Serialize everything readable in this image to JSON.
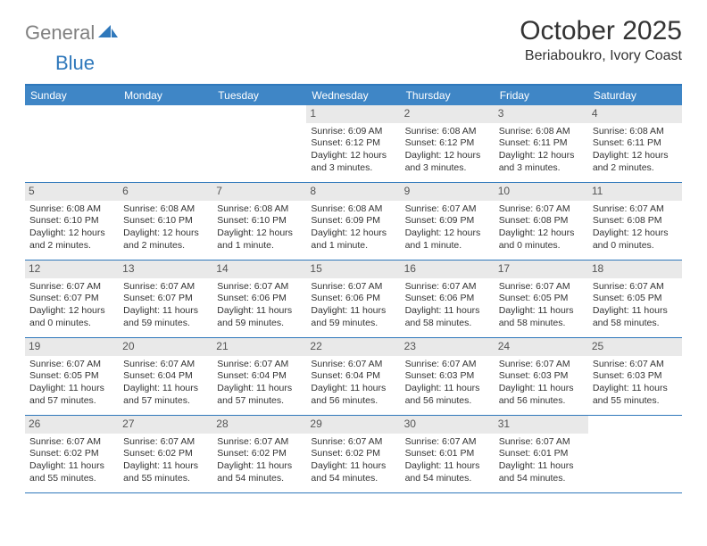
{
  "brand": {
    "word1": "General",
    "word2": "Blue"
  },
  "title": "October 2025",
  "location": "Beriaboukro, Ivory Coast",
  "colors": {
    "accent": "#2f78bb",
    "header_bg": "#3f86c6",
    "daynum_bg": "#e9e9e9",
    "text": "#333333"
  },
  "days_of_week": [
    "Sunday",
    "Monday",
    "Tuesday",
    "Wednesday",
    "Thursday",
    "Friday",
    "Saturday"
  ],
  "weeks": [
    [
      null,
      null,
      null,
      {
        "n": "1",
        "sr": "Sunrise: 6:09 AM",
        "ss": "Sunset: 6:12 PM",
        "dl1": "Daylight: 12 hours",
        "dl2": "and 3 minutes."
      },
      {
        "n": "2",
        "sr": "Sunrise: 6:08 AM",
        "ss": "Sunset: 6:12 PM",
        "dl1": "Daylight: 12 hours",
        "dl2": "and 3 minutes."
      },
      {
        "n": "3",
        "sr": "Sunrise: 6:08 AM",
        "ss": "Sunset: 6:11 PM",
        "dl1": "Daylight: 12 hours",
        "dl2": "and 3 minutes."
      },
      {
        "n": "4",
        "sr": "Sunrise: 6:08 AM",
        "ss": "Sunset: 6:11 PM",
        "dl1": "Daylight: 12 hours",
        "dl2": "and 2 minutes."
      }
    ],
    [
      {
        "n": "5",
        "sr": "Sunrise: 6:08 AM",
        "ss": "Sunset: 6:10 PM",
        "dl1": "Daylight: 12 hours",
        "dl2": "and 2 minutes."
      },
      {
        "n": "6",
        "sr": "Sunrise: 6:08 AM",
        "ss": "Sunset: 6:10 PM",
        "dl1": "Daylight: 12 hours",
        "dl2": "and 2 minutes."
      },
      {
        "n": "7",
        "sr": "Sunrise: 6:08 AM",
        "ss": "Sunset: 6:10 PM",
        "dl1": "Daylight: 12 hours",
        "dl2": "and 1 minute."
      },
      {
        "n": "8",
        "sr": "Sunrise: 6:08 AM",
        "ss": "Sunset: 6:09 PM",
        "dl1": "Daylight: 12 hours",
        "dl2": "and 1 minute."
      },
      {
        "n": "9",
        "sr": "Sunrise: 6:07 AM",
        "ss": "Sunset: 6:09 PM",
        "dl1": "Daylight: 12 hours",
        "dl2": "and 1 minute."
      },
      {
        "n": "10",
        "sr": "Sunrise: 6:07 AM",
        "ss": "Sunset: 6:08 PM",
        "dl1": "Daylight: 12 hours",
        "dl2": "and 0 minutes."
      },
      {
        "n": "11",
        "sr": "Sunrise: 6:07 AM",
        "ss": "Sunset: 6:08 PM",
        "dl1": "Daylight: 12 hours",
        "dl2": "and 0 minutes."
      }
    ],
    [
      {
        "n": "12",
        "sr": "Sunrise: 6:07 AM",
        "ss": "Sunset: 6:07 PM",
        "dl1": "Daylight: 12 hours",
        "dl2": "and 0 minutes."
      },
      {
        "n": "13",
        "sr": "Sunrise: 6:07 AM",
        "ss": "Sunset: 6:07 PM",
        "dl1": "Daylight: 11 hours",
        "dl2": "and 59 minutes."
      },
      {
        "n": "14",
        "sr": "Sunrise: 6:07 AM",
        "ss": "Sunset: 6:06 PM",
        "dl1": "Daylight: 11 hours",
        "dl2": "and 59 minutes."
      },
      {
        "n": "15",
        "sr": "Sunrise: 6:07 AM",
        "ss": "Sunset: 6:06 PM",
        "dl1": "Daylight: 11 hours",
        "dl2": "and 59 minutes."
      },
      {
        "n": "16",
        "sr": "Sunrise: 6:07 AM",
        "ss": "Sunset: 6:06 PM",
        "dl1": "Daylight: 11 hours",
        "dl2": "and 58 minutes."
      },
      {
        "n": "17",
        "sr": "Sunrise: 6:07 AM",
        "ss": "Sunset: 6:05 PM",
        "dl1": "Daylight: 11 hours",
        "dl2": "and 58 minutes."
      },
      {
        "n": "18",
        "sr": "Sunrise: 6:07 AM",
        "ss": "Sunset: 6:05 PM",
        "dl1": "Daylight: 11 hours",
        "dl2": "and 58 minutes."
      }
    ],
    [
      {
        "n": "19",
        "sr": "Sunrise: 6:07 AM",
        "ss": "Sunset: 6:05 PM",
        "dl1": "Daylight: 11 hours",
        "dl2": "and 57 minutes."
      },
      {
        "n": "20",
        "sr": "Sunrise: 6:07 AM",
        "ss": "Sunset: 6:04 PM",
        "dl1": "Daylight: 11 hours",
        "dl2": "and 57 minutes."
      },
      {
        "n": "21",
        "sr": "Sunrise: 6:07 AM",
        "ss": "Sunset: 6:04 PM",
        "dl1": "Daylight: 11 hours",
        "dl2": "and 57 minutes."
      },
      {
        "n": "22",
        "sr": "Sunrise: 6:07 AM",
        "ss": "Sunset: 6:04 PM",
        "dl1": "Daylight: 11 hours",
        "dl2": "and 56 minutes."
      },
      {
        "n": "23",
        "sr": "Sunrise: 6:07 AM",
        "ss": "Sunset: 6:03 PM",
        "dl1": "Daylight: 11 hours",
        "dl2": "and 56 minutes."
      },
      {
        "n": "24",
        "sr": "Sunrise: 6:07 AM",
        "ss": "Sunset: 6:03 PM",
        "dl1": "Daylight: 11 hours",
        "dl2": "and 56 minutes."
      },
      {
        "n": "25",
        "sr": "Sunrise: 6:07 AM",
        "ss": "Sunset: 6:03 PM",
        "dl1": "Daylight: 11 hours",
        "dl2": "and 55 minutes."
      }
    ],
    [
      {
        "n": "26",
        "sr": "Sunrise: 6:07 AM",
        "ss": "Sunset: 6:02 PM",
        "dl1": "Daylight: 11 hours",
        "dl2": "and 55 minutes."
      },
      {
        "n": "27",
        "sr": "Sunrise: 6:07 AM",
        "ss": "Sunset: 6:02 PM",
        "dl1": "Daylight: 11 hours",
        "dl2": "and 55 minutes."
      },
      {
        "n": "28",
        "sr": "Sunrise: 6:07 AM",
        "ss": "Sunset: 6:02 PM",
        "dl1": "Daylight: 11 hours",
        "dl2": "and 54 minutes."
      },
      {
        "n": "29",
        "sr": "Sunrise: 6:07 AM",
        "ss": "Sunset: 6:02 PM",
        "dl1": "Daylight: 11 hours",
        "dl2": "and 54 minutes."
      },
      {
        "n": "30",
        "sr": "Sunrise: 6:07 AM",
        "ss": "Sunset: 6:01 PM",
        "dl1": "Daylight: 11 hours",
        "dl2": "and 54 minutes."
      },
      {
        "n": "31",
        "sr": "Sunrise: 6:07 AM",
        "ss": "Sunset: 6:01 PM",
        "dl1": "Daylight: 11 hours",
        "dl2": "and 54 minutes."
      },
      null
    ]
  ]
}
